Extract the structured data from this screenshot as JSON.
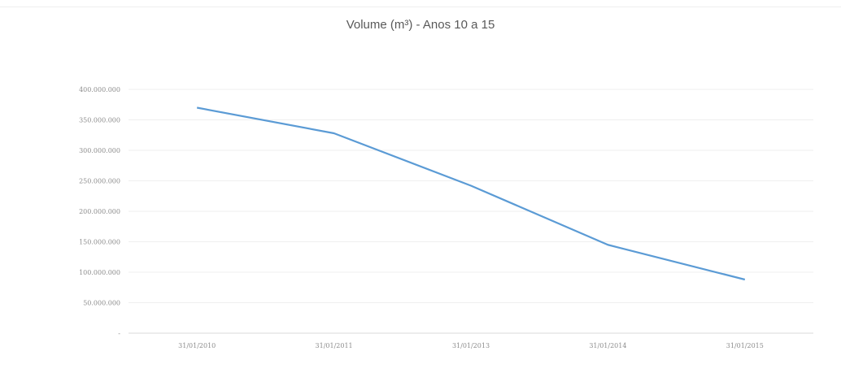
{
  "chart_data": {
    "type": "line",
    "title": "Volume (m³) - Anos 10 a 15",
    "xlabel": "",
    "ylabel": "",
    "categories": [
      "31/01/2010",
      "31/01/2011",
      "31/01/2013",
      "31/01/2014",
      "31/01/2015"
    ],
    "series": [
      {
        "values": [
          370000000,
          328000000,
          242000000,
          145000000,
          88000000
        ]
      }
    ],
    "ylim": [
      0,
      400000000
    ],
    "y_ticks": [
      "-",
      "50.000.000",
      "100.000.000",
      "150.000.000",
      "200.000.000",
      "250.000.000",
      "300.000.000",
      "350.000.000",
      "400.000.000"
    ],
    "y_tick_values": [
      0,
      50000000,
      100000000,
      150000000,
      200000000,
      250000000,
      300000000,
      350000000,
      400000000
    ],
    "grid": true,
    "legend": "none",
    "line_color": "#5b9bd5"
  }
}
